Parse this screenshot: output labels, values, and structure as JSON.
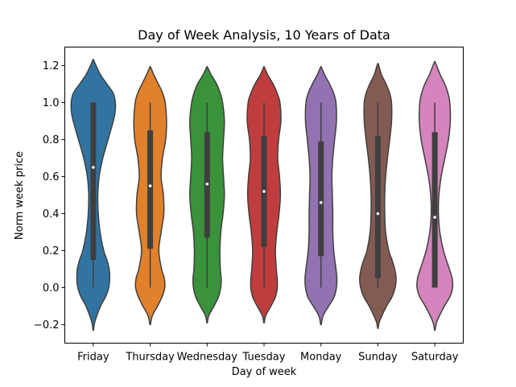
{
  "chart_data": {
    "type": "violin",
    "title": "Day of Week Analysis, 10 Years of Data",
    "xlabel": "Day of week",
    "ylabel": "Norm week price",
    "ylim": [
      -0.3,
      1.3
    ],
    "yticks": [
      -0.2,
      0.0,
      0.2,
      0.4,
      0.6,
      0.8,
      1.0,
      1.2
    ],
    "ytick_labels": [
      "−0.2",
      "0.0",
      "0.2",
      "0.4",
      "0.6",
      "0.8",
      "1.0",
      "1.2"
    ],
    "categories": [
      "Friday",
      "Thursday",
      "Wednesday",
      "Tuesday",
      "Monday",
      "Sunday",
      "Saturday"
    ],
    "colors": [
      "#3274a1",
      "#e1812c",
      "#3a923a",
      "#c03d3e",
      "#9372b2",
      "#845b53",
      "#d684bd"
    ],
    "violins": [
      {
        "category": "Friday",
        "min": 0.0,
        "q1": 0.15,
        "median": 0.65,
        "q3": 1.0,
        "max": 1.0,
        "density": [
          [
            -0.23,
            0.01
          ],
          [
            -0.18,
            0.08
          ],
          [
            -0.1,
            0.32
          ],
          [
            -0.05,
            0.54
          ],
          [
            0.0,
            0.68
          ],
          [
            0.05,
            0.72
          ],
          [
            0.1,
            0.7
          ],
          [
            0.15,
            0.6
          ],
          [
            0.2,
            0.46
          ],
          [
            0.3,
            0.3
          ],
          [
            0.4,
            0.22
          ],
          [
            0.5,
            0.2
          ],
          [
            0.6,
            0.26
          ],
          [
            0.7,
            0.42
          ],
          [
            0.8,
            0.65
          ],
          [
            0.9,
            0.88
          ],
          [
            0.95,
            0.96
          ],
          [
            1.0,
            0.97
          ],
          [
            1.05,
            0.88
          ],
          [
            1.1,
            0.6
          ],
          [
            1.15,
            0.32
          ],
          [
            1.2,
            0.12
          ],
          [
            1.23,
            0.02
          ]
        ]
      },
      {
        "category": "Thursday",
        "min": 0.0,
        "q1": 0.21,
        "median": 0.55,
        "q3": 0.85,
        "max": 1.0,
        "density": [
          [
            -0.2,
            0.01
          ],
          [
            -0.15,
            0.1
          ],
          [
            -0.1,
            0.32
          ],
          [
            -0.05,
            0.52
          ],
          [
            0.0,
            0.64
          ],
          [
            0.05,
            0.62
          ],
          [
            0.1,
            0.5
          ],
          [
            0.2,
            0.38
          ],
          [
            0.3,
            0.48
          ],
          [
            0.4,
            0.6
          ],
          [
            0.5,
            0.58
          ],
          [
            0.6,
            0.48
          ],
          [
            0.7,
            0.54
          ],
          [
            0.8,
            0.68
          ],
          [
            0.9,
            0.72
          ],
          [
            1.0,
            0.66
          ],
          [
            1.05,
            0.55
          ],
          [
            1.1,
            0.36
          ],
          [
            1.15,
            0.16
          ],
          [
            1.19,
            0.02
          ]
        ]
      },
      {
        "category": "Wednesday",
        "min": 0.0,
        "q1": 0.27,
        "median": 0.56,
        "q3": 0.84,
        "max": 1.0,
        "density": [
          [
            -0.19,
            0.01
          ],
          [
            -0.15,
            0.08
          ],
          [
            -0.1,
            0.3
          ],
          [
            -0.05,
            0.5
          ],
          [
            0.0,
            0.6
          ],
          [
            0.05,
            0.62
          ],
          [
            0.1,
            0.58
          ],
          [
            0.2,
            0.56
          ],
          [
            0.3,
            0.6
          ],
          [
            0.4,
            0.7
          ],
          [
            0.5,
            0.76
          ],
          [
            0.6,
            0.72
          ],
          [
            0.7,
            0.68
          ],
          [
            0.8,
            0.72
          ],
          [
            0.9,
            0.76
          ],
          [
            1.0,
            0.68
          ],
          [
            1.05,
            0.58
          ],
          [
            1.1,
            0.42
          ],
          [
            1.15,
            0.18
          ],
          [
            1.19,
            0.02
          ]
        ]
      },
      {
        "category": "Tuesday",
        "min": 0.0,
        "q1": 0.22,
        "median": 0.52,
        "q3": 0.82,
        "max": 1.0,
        "density": [
          [
            -0.19,
            0.01
          ],
          [
            -0.15,
            0.08
          ],
          [
            -0.1,
            0.3
          ],
          [
            -0.05,
            0.5
          ],
          [
            0.0,
            0.58
          ],
          [
            0.05,
            0.58
          ],
          [
            0.1,
            0.54
          ],
          [
            0.2,
            0.5
          ],
          [
            0.3,
            0.56
          ],
          [
            0.4,
            0.66
          ],
          [
            0.5,
            0.72
          ],
          [
            0.6,
            0.68
          ],
          [
            0.7,
            0.6
          ],
          [
            0.8,
            0.64
          ],
          [
            0.9,
            0.74
          ],
          [
            1.0,
            0.7
          ],
          [
            1.05,
            0.58
          ],
          [
            1.1,
            0.4
          ],
          [
            1.15,
            0.16
          ],
          [
            1.19,
            0.02
          ]
        ]
      },
      {
        "category": "Monday",
        "min": 0.0,
        "q1": 0.17,
        "median": 0.46,
        "q3": 0.79,
        "max": 1.0,
        "density": [
          [
            -0.2,
            0.01
          ],
          [
            -0.15,
            0.1
          ],
          [
            -0.1,
            0.34
          ],
          [
            -0.05,
            0.58
          ],
          [
            0.0,
            0.68
          ],
          [
            0.05,
            0.7
          ],
          [
            0.1,
            0.66
          ],
          [
            0.2,
            0.56
          ],
          [
            0.3,
            0.52
          ],
          [
            0.4,
            0.52
          ],
          [
            0.5,
            0.5
          ],
          [
            0.6,
            0.48
          ],
          [
            0.7,
            0.52
          ],
          [
            0.8,
            0.6
          ],
          [
            0.9,
            0.68
          ],
          [
            1.0,
            0.66
          ],
          [
            1.05,
            0.56
          ],
          [
            1.1,
            0.38
          ],
          [
            1.15,
            0.16
          ],
          [
            1.19,
            0.02
          ]
        ]
      },
      {
        "category": "Sunday",
        "min": 0.0,
        "q1": 0.05,
        "median": 0.4,
        "q3": 0.82,
        "max": 1.0,
        "density": [
          [
            -0.22,
            0.01
          ],
          [
            -0.18,
            0.08
          ],
          [
            -0.1,
            0.38
          ],
          [
            -0.05,
            0.62
          ],
          [
            0.0,
            0.76
          ],
          [
            0.05,
            0.8
          ],
          [
            0.1,
            0.74
          ],
          [
            0.15,
            0.62
          ],
          [
            0.2,
            0.48
          ],
          [
            0.3,
            0.34
          ],
          [
            0.4,
            0.3
          ],
          [
            0.5,
            0.3
          ],
          [
            0.6,
            0.34
          ],
          [
            0.7,
            0.42
          ],
          [
            0.8,
            0.52
          ],
          [
            0.9,
            0.6
          ],
          [
            1.0,
            0.6
          ],
          [
            1.05,
            0.52
          ],
          [
            1.1,
            0.36
          ],
          [
            1.15,
            0.16
          ],
          [
            1.2,
            0.04
          ],
          [
            1.21,
            0.01
          ]
        ]
      },
      {
        "category": "Saturday",
        "min": 0.0,
        "q1": 0.0,
        "median": 0.38,
        "q3": 0.84,
        "max": 1.0,
        "density": [
          [
            -0.23,
            0.01
          ],
          [
            -0.18,
            0.1
          ],
          [
            -0.1,
            0.42
          ],
          [
            -0.05,
            0.66
          ],
          [
            0.0,
            0.78
          ],
          [
            0.05,
            0.76
          ],
          [
            0.1,
            0.64
          ],
          [
            0.2,
            0.38
          ],
          [
            0.3,
            0.22
          ],
          [
            0.4,
            0.16
          ],
          [
            0.5,
            0.18
          ],
          [
            0.6,
            0.28
          ],
          [
            0.7,
            0.44
          ],
          [
            0.8,
            0.6
          ],
          [
            0.9,
            0.68
          ],
          [
            1.0,
            0.66
          ],
          [
            1.05,
            0.58
          ],
          [
            1.1,
            0.44
          ],
          [
            1.15,
            0.24
          ],
          [
            1.2,
            0.08
          ],
          [
            1.22,
            0.01
          ]
        ]
      }
    ],
    "grid": false,
    "legend": "none"
  }
}
